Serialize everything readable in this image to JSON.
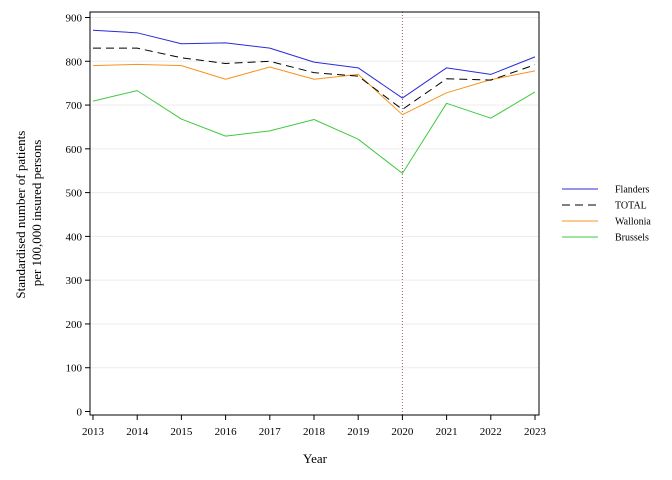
{
  "chart_data": {
    "type": "line",
    "title": "",
    "xlabel": "Year",
    "ylabel_lines": [
      "Standardised number of patients",
      "per 100,000 insured persons"
    ],
    "x": [
      2013,
      2014,
      2015,
      2016,
      2017,
      2018,
      2019,
      2020,
      2021,
      2022,
      2023
    ],
    "xlim": [
      2013,
      2023
    ],
    "ylim": [
      0,
      900
    ],
    "yticks": [
      0,
      100,
      200,
      300,
      400,
      500,
      600,
      700,
      800,
      900
    ],
    "grid": "horizontal",
    "reference_line_x": 2020,
    "legend_position": "right",
    "series": [
      {
        "name": "Flanders",
        "color": "#2b2bd6",
        "dash": "solid",
        "values": [
          871,
          865,
          840,
          842,
          830,
          798,
          785,
          716,
          785,
          770,
          810
        ]
      },
      {
        "name": "TOTAL",
        "color": "#000000",
        "dash": "dashed",
        "values": [
          830,
          830,
          808,
          795,
          800,
          774,
          766,
          690,
          760,
          757,
          792
        ]
      },
      {
        "name": "Wallonia",
        "color": "#f7941d",
        "dash": "solid",
        "values": [
          790,
          793,
          790,
          759,
          787,
          759,
          770,
          678,
          728,
          758,
          778
        ]
      },
      {
        "name": "Brussels",
        "color": "#3fc93f",
        "dash": "solid",
        "values": [
          709,
          733,
          668,
          629,
          641,
          667,
          622,
          544,
          704,
          670,
          730
        ]
      }
    ]
  }
}
